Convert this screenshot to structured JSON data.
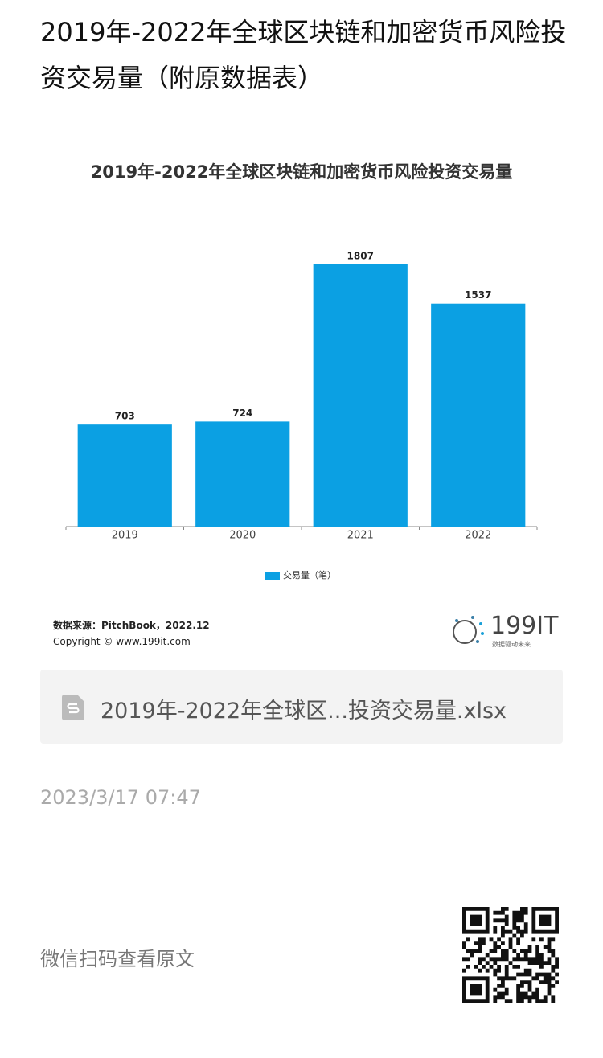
{
  "header": {
    "title": "2019年-2022年全球区块链和加密货币风险投资交易量（附原数据表）"
  },
  "chart_data": {
    "type": "bar",
    "title": "2019年-2022年全球区块链和加密货币风险投资交易量",
    "categories": [
      "2019",
      "2020",
      "2021",
      "2022"
    ],
    "series": [
      {
        "name": "交易量（笔）",
        "color": "#0ba0e3",
        "values": [
          703,
          724,
          1807,
          1537
        ]
      }
    ]
  },
  "source": {
    "text": "数据来源：PitchBook，2022.12",
    "copyright": "Copyright © www.199it.com"
  },
  "logo": {
    "text": "199IT",
    "slogan": "数据驱动未来"
  },
  "attachment": {
    "filename": "2019年-2022年全球区...投资交易量.xlsx"
  },
  "date": "2023/3/17 07:47",
  "footer": {
    "text": "微信扫码查看原文"
  }
}
